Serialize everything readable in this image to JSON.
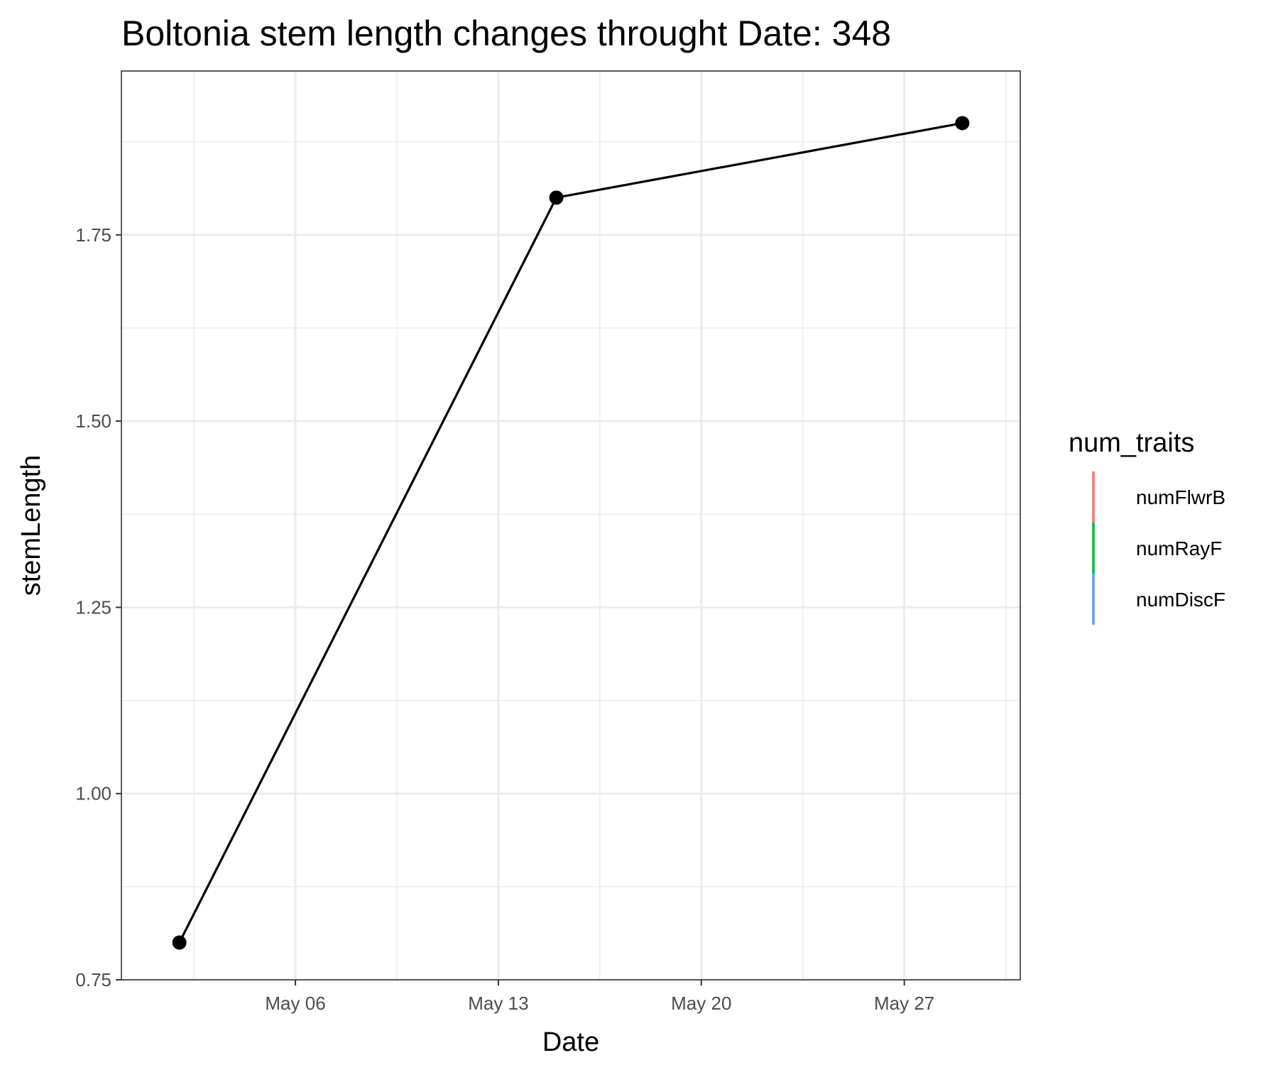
{
  "chart_data": {
    "type": "line",
    "title": "Boltonia stem length changes throught Date:  348",
    "xlabel": "Date",
    "ylabel": "stemLength",
    "x": [
      "2024-05-02",
      "2024-05-15",
      "2024-05-29"
    ],
    "series": [
      {
        "values": [
          0.8,
          1.8,
          1.9
        ],
        "color": "#000000"
      }
    ],
    "x_ticks": [
      {
        "date": "2024-05-06",
        "label": "May 06"
      },
      {
        "date": "2024-05-13",
        "label": "May 13"
      },
      {
        "date": "2024-05-20",
        "label": "May 20"
      },
      {
        "date": "2024-05-27",
        "label": "May 27"
      }
    ],
    "xlim": [
      "2024-04-30",
      "2024-05-31"
    ],
    "y_ticks": [
      {
        "value": 0.75,
        "label": "0.75"
      },
      {
        "value": 1.0,
        "label": "1.00"
      },
      {
        "value": 1.25,
        "label": "1.25"
      },
      {
        "value": 1.5,
        "label": "1.50"
      },
      {
        "value": 1.75,
        "label": "1.75"
      }
    ],
    "ylim": [
      0.75,
      1.97
    ],
    "grid": true,
    "legend": {
      "title": "num_traits",
      "position": "right",
      "entries": [
        {
          "label": "numFlwrB",
          "color": "#F8766D"
        },
        {
          "label": "numRayF",
          "color": "#00BA38"
        },
        {
          "label": "numDiscF",
          "color": "#619CFF"
        }
      ]
    }
  }
}
